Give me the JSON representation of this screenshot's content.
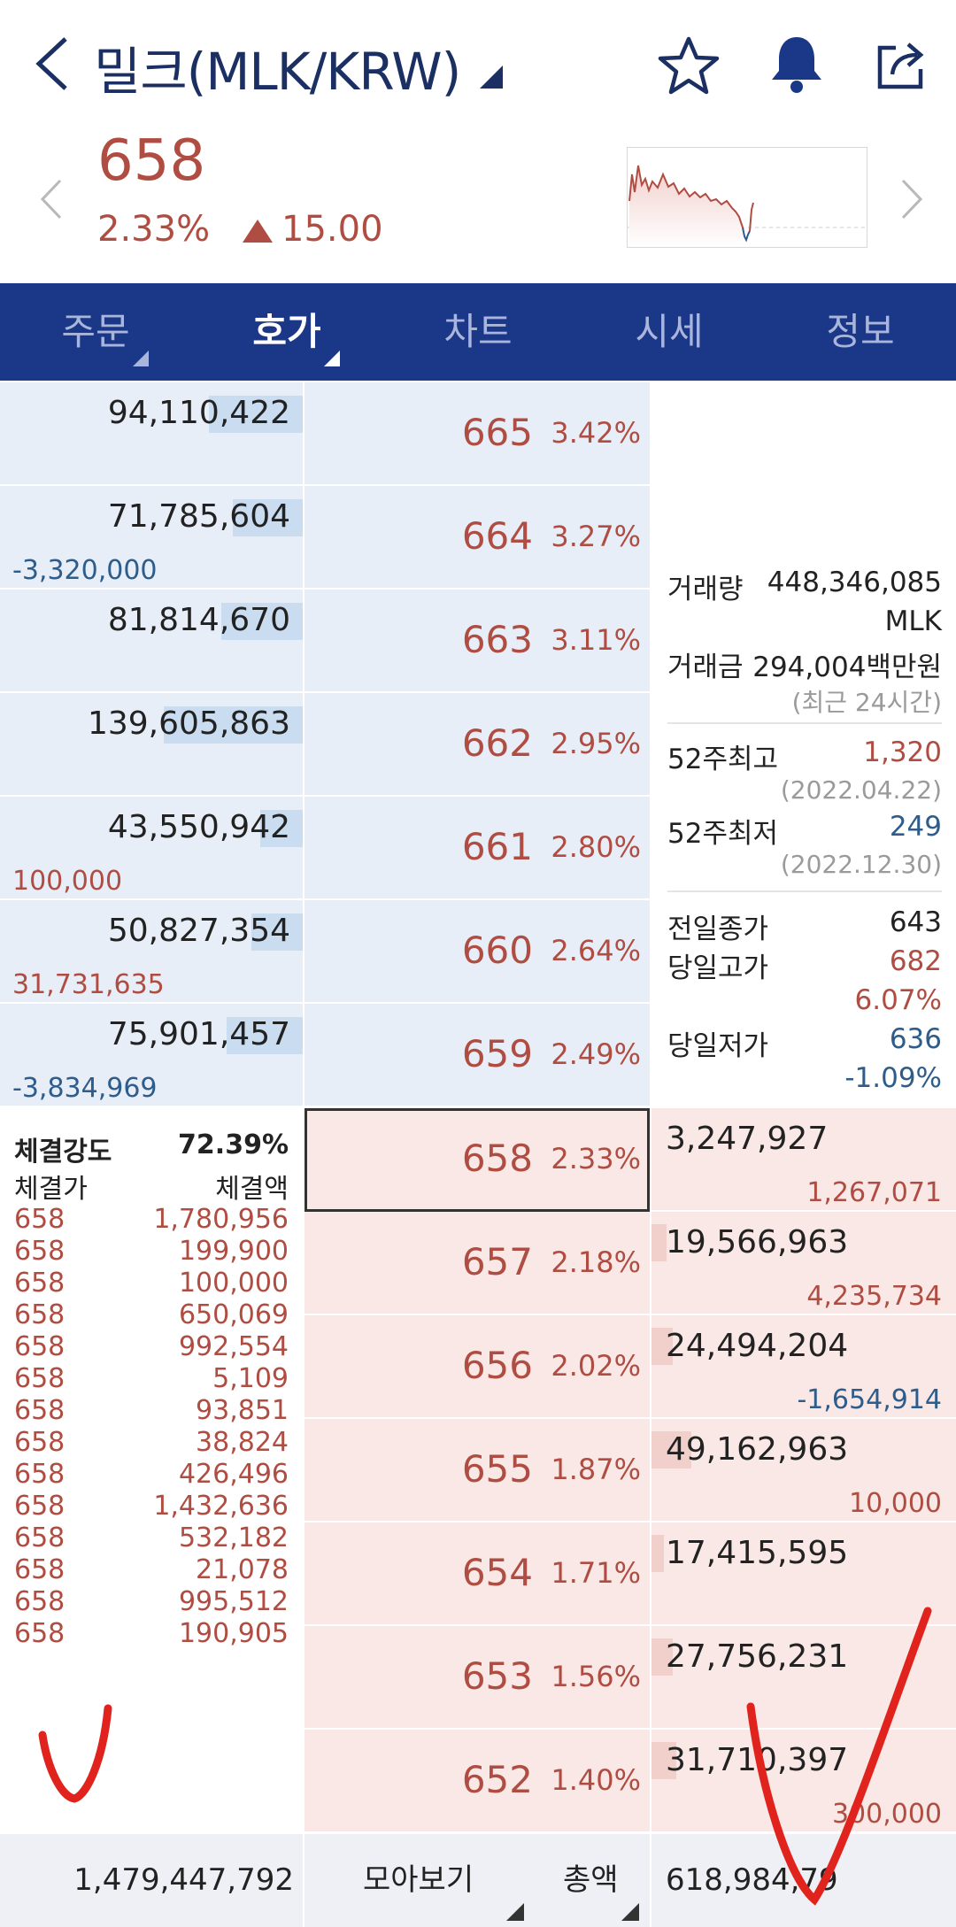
{
  "header": {
    "title": "밀크(MLK/KRW)",
    "icons": [
      "back-icon",
      "dropdown-triangle-icon",
      "star-icon",
      "bell-icon",
      "share-icon"
    ]
  },
  "ticker": {
    "price": "658",
    "change_pct": "2.33%",
    "change_value": "15.00",
    "direction": "up"
  },
  "tabs": [
    {
      "label": "주문",
      "selected": false
    },
    {
      "label": "호가",
      "selected": true
    },
    {
      "label": "차트",
      "selected": false
    },
    {
      "label": "시세",
      "selected": false
    },
    {
      "label": "정보",
      "selected": false
    }
  ],
  "asks": [
    {
      "qty": "94,110,422",
      "change": "",
      "price": "665",
      "pct": "3.42%",
      "fill": 0.31
    },
    {
      "qty": "71,785,604",
      "change": "-3,320,000",
      "price": "664",
      "pct": "3.27%",
      "fill": 0.23
    },
    {
      "qty": "81,814,670",
      "change": "",
      "price": "663",
      "pct": "3.11%",
      "fill": 0.27
    },
    {
      "qty": "139,605,863",
      "change": "",
      "price": "662",
      "pct": "2.95%",
      "fill": 0.46
    },
    {
      "qty": "43,550,942",
      "change": "100,000",
      "price": "661",
      "pct": "2.80%",
      "fill": 0.14
    },
    {
      "qty": "50,827,354",
      "change": "31,731,635",
      "price": "660",
      "pct": "2.64%",
      "fill": 0.17
    },
    {
      "qty": "75,901,457",
      "change": "-3,834,969",
      "price": "659",
      "pct": "2.49%",
      "fill": 0.25
    }
  ],
  "info": {
    "volume_label": "거래량",
    "volume_value": "448,346,085",
    "volume_unit": "MLK",
    "amount_label": "거래금",
    "amount_value": "294,004백만원",
    "amount_note": "(최근 24시간)",
    "high52_label": "52주최고",
    "high52_value": "1,320",
    "high52_date": "(2022.04.22)",
    "low52_label": "52주최저",
    "low52_value": "249",
    "low52_date": "(2022.12.30)",
    "prev_close_label": "전일종가",
    "prev_close_value": "643",
    "day_high_label": "당일고가",
    "day_high_value": "682",
    "day_high_pct": "6.07%",
    "day_low_label": "당일저가",
    "day_low_value": "636",
    "day_low_pct": "-1.09%"
  },
  "trades": {
    "strength_label": "체결강도",
    "strength_value": "72.39%",
    "price_header": "체결가",
    "amount_header": "체결액",
    "rows": [
      {
        "price": "658",
        "amount": "1,780,956"
      },
      {
        "price": "658",
        "amount": "199,900"
      },
      {
        "price": "658",
        "amount": "100,000"
      },
      {
        "price": "658",
        "amount": "650,069"
      },
      {
        "price": "658",
        "amount": "992,554"
      },
      {
        "price": "658",
        "amount": "5,109"
      },
      {
        "price": "658",
        "amount": "93,851"
      },
      {
        "price": "658",
        "amount": "38,824"
      },
      {
        "price": "658",
        "amount": "426,496"
      },
      {
        "price": "658",
        "amount": "1,432,636"
      },
      {
        "price": "658",
        "amount": "532,182"
      },
      {
        "price": "658",
        "amount": "21,078"
      },
      {
        "price": "658",
        "amount": "995,512"
      },
      {
        "price": "658",
        "amount": "190,905"
      }
    ]
  },
  "bids": [
    {
      "price": "658",
      "pct": "2.33%",
      "qty": "3,247,927",
      "change": "1,267,071",
      "change_dir": "up",
      "fill": 0.0
    },
    {
      "price": "657",
      "pct": "2.18%",
      "qty": "19,566,963",
      "change": "4,235,734",
      "change_dir": "up",
      "fill": 0.05
    },
    {
      "price": "656",
      "pct": "2.02%",
      "qty": "24,494,204",
      "change": "-1,654,914",
      "change_dir": "down",
      "fill": 0.07
    },
    {
      "price": "655",
      "pct": "1.87%",
      "qty": "49,162,963",
      "change": "10,000",
      "change_dir": "up",
      "fill": 0.13
    },
    {
      "price": "654",
      "pct": "1.71%",
      "qty": "17,415,595",
      "change": "",
      "change_dir": "up",
      "fill": 0.04
    },
    {
      "price": "653",
      "pct": "1.56%",
      "qty": "27,756,231",
      "change": "",
      "change_dir": "up",
      "fill": 0.07
    },
    {
      "price": "652",
      "pct": "1.40%",
      "qty": "31,710,397",
      "change": "300,000",
      "change_dir": "up",
      "fill": 0.08
    }
  ],
  "footer": {
    "ask_total": "1,479,447,792",
    "view_label": "모아보기",
    "total_label": "총액",
    "bid_total": "618,984,79"
  },
  "colors": {
    "up": "#b04d42",
    "down": "#2e5d8c",
    "tab_bg": "#1b3788",
    "title": "#1b2f63"
  }
}
